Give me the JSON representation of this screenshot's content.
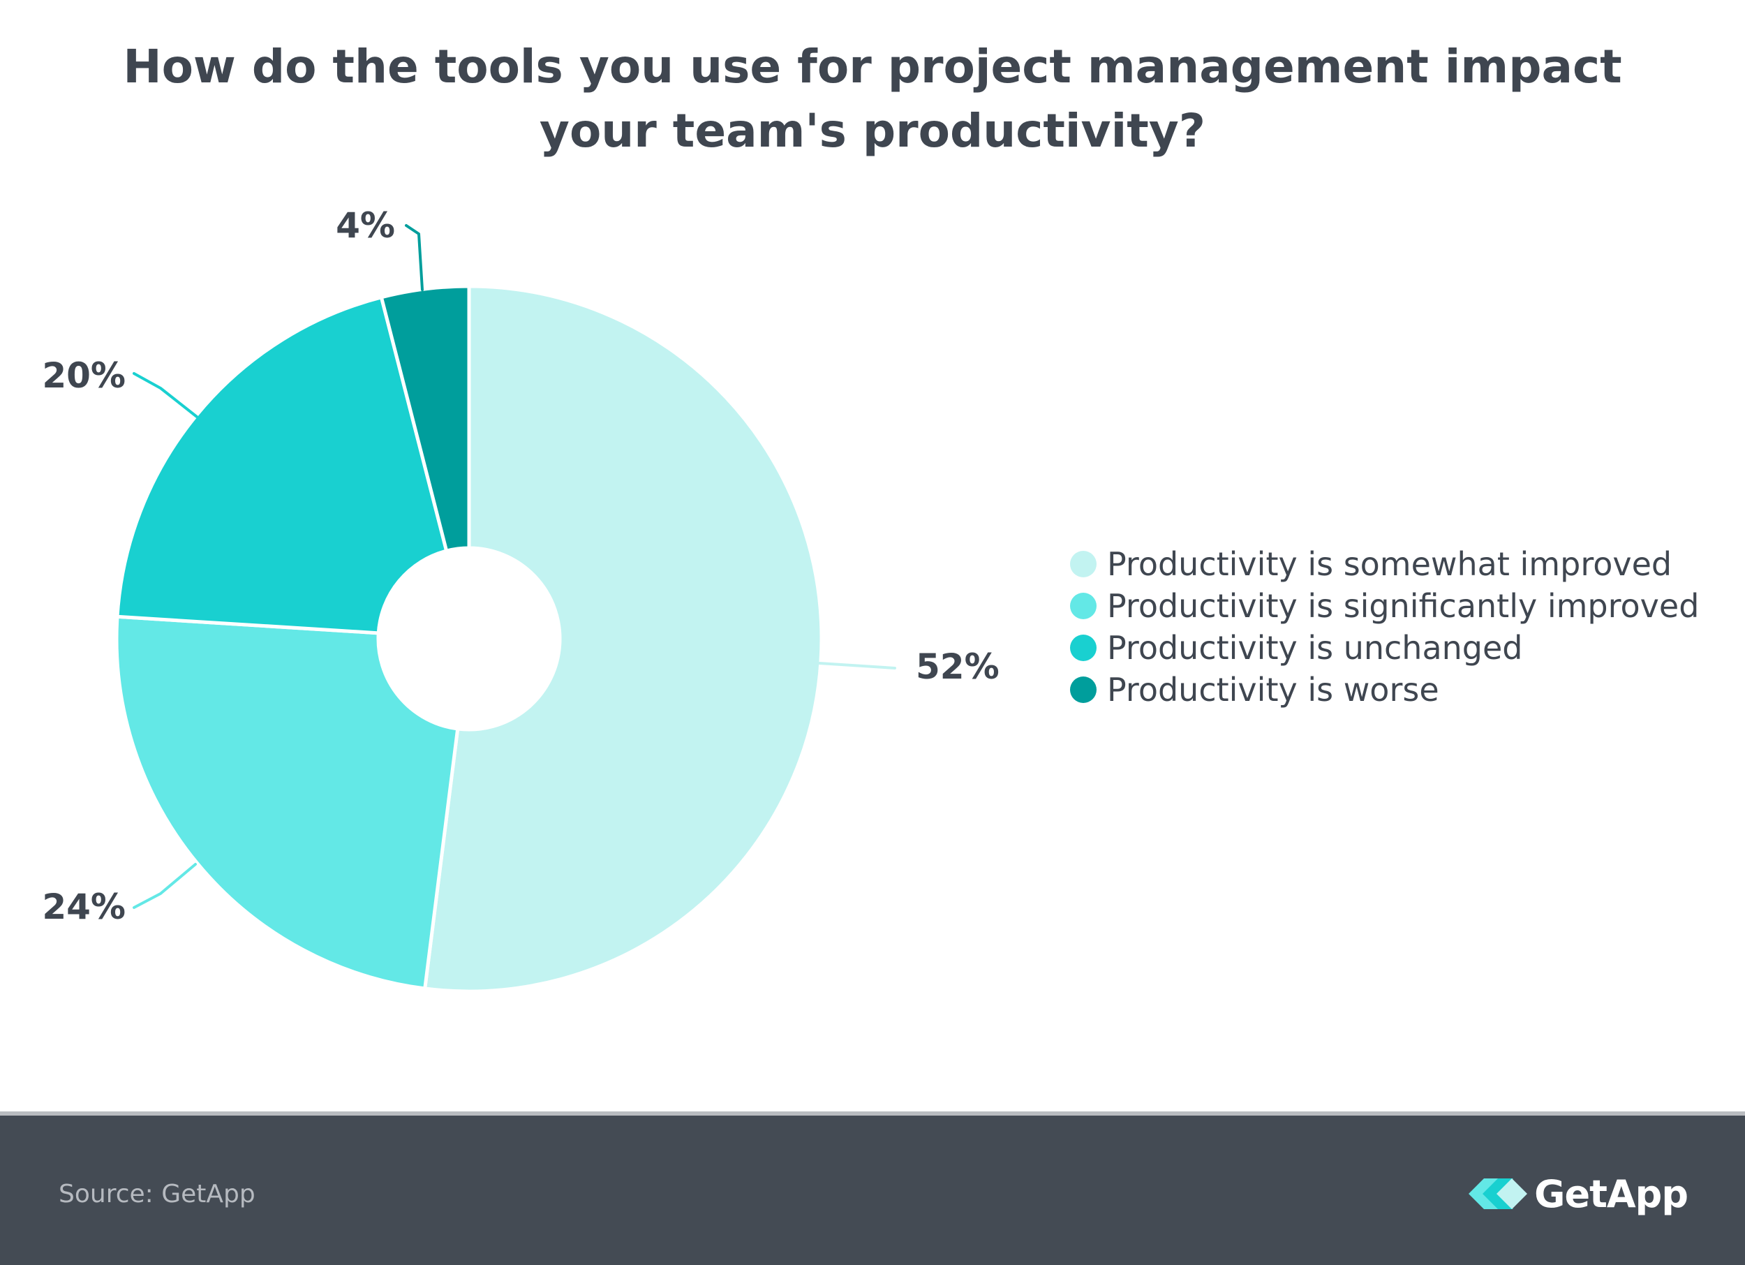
{
  "title": "How do the tools you use for project management impact your team's productivity?",
  "chart_data": {
    "type": "pie",
    "title": "How do the tools you use for project management impact your team's productivity?",
    "unit": "%",
    "donut": true,
    "legend_position": "right",
    "slices": [
      {
        "label": "Productivity is somewhat improved",
        "value": 52,
        "value_label": "52%",
        "color": "#c2f3f1"
      },
      {
        "label": "Productivity is significantly improved",
        "value": 24,
        "value_label": "24%",
        "color": "#63e8e6"
      },
      {
        "label": "Productivity is unchanged",
        "value": 20,
        "value_label": "20%",
        "color": "#19d0d0"
      },
      {
        "label": "Productivity is worse",
        "value": 4,
        "value_label": "4%",
        "color": "#009e9c"
      }
    ]
  },
  "footer": {
    "source": "Source: GetApp",
    "logo_text": "GetApp",
    "logo_icon": "getapp-chevrons-icon"
  },
  "colors": {
    "text": "#3f4650",
    "footer_bg": "#444b54",
    "slice_border": "#ffffff"
  }
}
